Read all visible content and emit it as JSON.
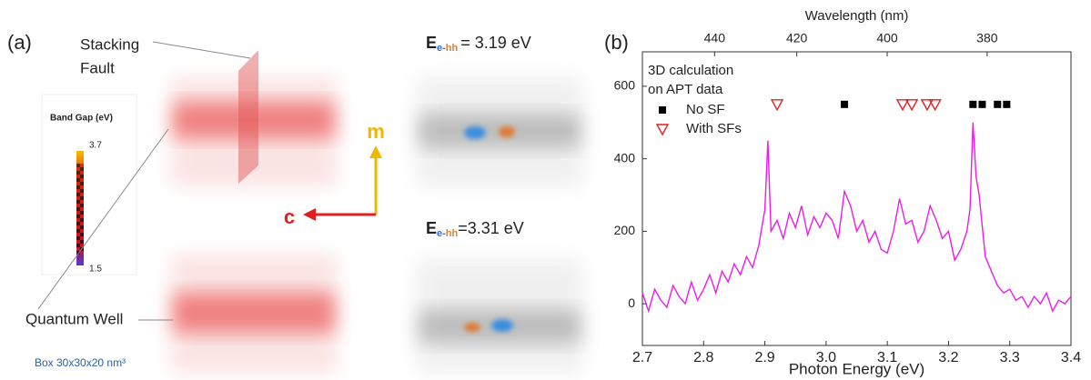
{
  "panel_a": {
    "label": "(a)",
    "stacking_fault": [
      "Stacking",
      "Fault"
    ],
    "colorbar_title": "Band Gap (eV)",
    "colorbar_max": "3.7",
    "colorbar_min": "1.5",
    "quantum_well": "Quantum Well",
    "box": "Box 30x30x20 nm³",
    "axis_m": "m",
    "axis_c": "c",
    "energy_top": {
      "symbol": "E",
      "sub_e": "e-",
      "sub_hh": "hh",
      "value_text": "= 3.19 eV"
    },
    "energy_bottom": {
      "symbol": "E",
      "sub_e": "e-",
      "sub_hh": "hh",
      "value_text": "=3.31 eV"
    }
  },
  "chart_data": {
    "type": "line",
    "panel_label": "(b)",
    "xlabel": "Photon Energy (eV)",
    "x2label": "Wavelength (nm)",
    "xlim": [
      2.7,
      3.4
    ],
    "xticks": [
      2.7,
      2.8,
      2.9,
      {
        "value": 3,
        "label": "3.0"
      },
      3.1,
      3.2,
      3.3,
      3.4
    ],
    "x2lim": [
      459.2,
      364.7
    ],
    "x2scale": "reciprocal",
    "x2ticks": [
      440,
      420,
      400,
      380
    ],
    "ylim": [
      -115,
      695
    ],
    "yticks": [
      0,
      200,
      400,
      600
    ],
    "color": "#e81ee8",
    "x": [
      2.7,
      2.71,
      2.72,
      2.73,
      2.74,
      2.75,
      2.76,
      2.77,
      2.78,
      2.79,
      2.8,
      2.81,
      2.82,
      2.83,
      2.84,
      2.85,
      2.86,
      2.87,
      2.88,
      2.89,
      2.9,
      2.905,
      2.91,
      2.92,
      2.93,
      2.94,
      2.95,
      2.96,
      2.97,
      2.98,
      2.99,
      3.0,
      3.01,
      3.02,
      3.03,
      3.04,
      3.05,
      3.06,
      3.07,
      3.08,
      3.09,
      3.1,
      3.11,
      3.12,
      3.13,
      3.14,
      3.15,
      3.16,
      3.17,
      3.18,
      3.19,
      3.2,
      3.21,
      3.22,
      3.23,
      3.235,
      3.24,
      3.245,
      3.25,
      3.26,
      3.27,
      3.28,
      3.29,
      3.3,
      3.31,
      3.32,
      3.33,
      3.34,
      3.35,
      3.36,
      3.37,
      3.38,
      3.39,
      3.4
    ],
    "values": [
      30,
      -20,
      40,
      10,
      -10,
      50,
      20,
      0,
      60,
      10,
      40,
      80,
      30,
      90,
      60,
      110,
      80,
      130,
      100,
      160,
      260,
      450,
      200,
      230,
      180,
      250,
      210,
      270,
      190,
      240,
      210,
      250,
      230,
      180,
      310,
      270,
      200,
      230,
      170,
      200,
      150,
      140,
      200,
      290,
      220,
      230,
      170,
      200,
      270,
      230,
      180,
      200,
      120,
      150,
      200,
      260,
      500,
      350,
      300,
      130,
      90,
      50,
      30,
      40,
      10,
      20,
      -10,
      20,
      0,
      30,
      -20,
      10,
      0,
      20
    ],
    "legend_title": [
      "3D calculation",
      "on APT data"
    ],
    "markers": [
      {
        "name": "No SF",
        "marker": "square",
        "color": "#000000",
        "x": [
          3.03,
          3.24,
          3.255,
          3.28,
          3.295
        ],
        "values": [
          550,
          550,
          550,
          550,
          550
        ]
      },
      {
        "name": "With SFs",
        "marker": "triangle",
        "color": "#e02020",
        "x": [
          2.92,
          3.125,
          3.14,
          3.165,
          3.178
        ],
        "values": [
          550,
          550,
          550,
          550,
          550
        ]
      }
    ]
  }
}
